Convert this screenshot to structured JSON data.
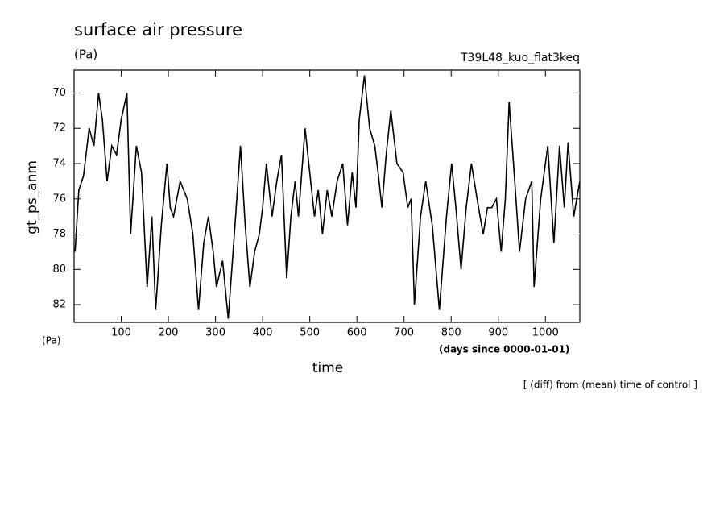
{
  "chart_data": {
    "type": "line",
    "title": "surface air pressure",
    "subtitle": "(Pa)",
    "run_label": "T39L48_kuo_flat3keq",
    "y_label": "gt_ps_anm",
    "y_unit": "(Pa)",
    "x_label": "time",
    "x_unit": "(days since 0000-01-01)",
    "annotation": "[ (diff) from (mean) time of control ]",
    "xlim": [
      0,
      1073
    ],
    "ylim": [
      83,
      68.7
    ],
    "y_inverted": true,
    "xticks": [
      100,
      200,
      300,
      400,
      500,
      600,
      700,
      800,
      900,
      1000
    ],
    "yticks": [
      70,
      72,
      74,
      76,
      78,
      80,
      82
    ],
    "series": [
      {
        "name": "gt_ps_anm",
        "color": "#000000",
        "x": [
          2,
          10,
          20,
          32,
          42,
          52,
          60,
          70,
          80,
          90,
          100,
          112,
          120,
          132,
          143,
          155,
          165,
          173,
          185,
          197,
          204,
          211,
          225,
          240,
          252,
          264,
          275,
          285,
          295,
          302,
          315,
          327,
          340,
          353,
          363,
          373,
          383,
          393,
          400,
          408,
          420,
          430,
          440,
          451,
          460,
          469,
          476,
          490,
          500,
          510,
          518,
          527,
          537,
          547,
          558,
          570,
          580,
          590,
          598,
          605,
          616,
          627,
          638,
          645,
          653,
          662,
          672,
          685,
          698,
          708,
          715,
          722,
          735,
          746,
          760,
          775,
          790,
          801,
          810,
          821,
          832,
          843,
          855,
          868,
          877,
          886,
          896,
          906,
          915,
          923,
          935,
          945,
          958,
          971,
          976,
          990,
          1005,
          1018,
          1030,
          1040,
          1048,
          1060,
          1073
        ],
        "values": [
          79,
          75.5,
          74.7,
          72,
          73,
          70,
          71.5,
          75,
          73,
          73.5,
          71.5,
          70,
          78,
          73,
          74.5,
          81,
          77,
          82.3,
          77.5,
          74,
          76.5,
          77,
          75,
          76,
          78,
          82.3,
          78.5,
          77,
          79,
          81,
          79.5,
          82.8,
          78,
          73,
          77.5,
          81,
          79,
          78,
          76.5,
          74,
          77,
          75,
          73.5,
          80.5,
          77,
          75,
          77,
          72,
          74.5,
          77,
          75.5,
          78,
          75.5,
          77,
          75,
          74,
          77.5,
          74.5,
          76.5,
          71.5,
          69,
          72,
          73,
          74.5,
          76.5,
          73.5,
          71,
          74,
          74.5,
          76.5,
          76,
          82,
          77,
          75,
          77.5,
          82.3,
          77,
          74,
          76.5,
          80,
          76.5,
          74,
          76,
          78,
          76.5,
          76.5,
          76,
          79,
          76,
          70.5,
          75,
          79,
          76,
          75,
          81,
          76,
          73,
          78.5,
          73,
          76.5,
          72.8,
          77,
          75
        ]
      }
    ]
  }
}
